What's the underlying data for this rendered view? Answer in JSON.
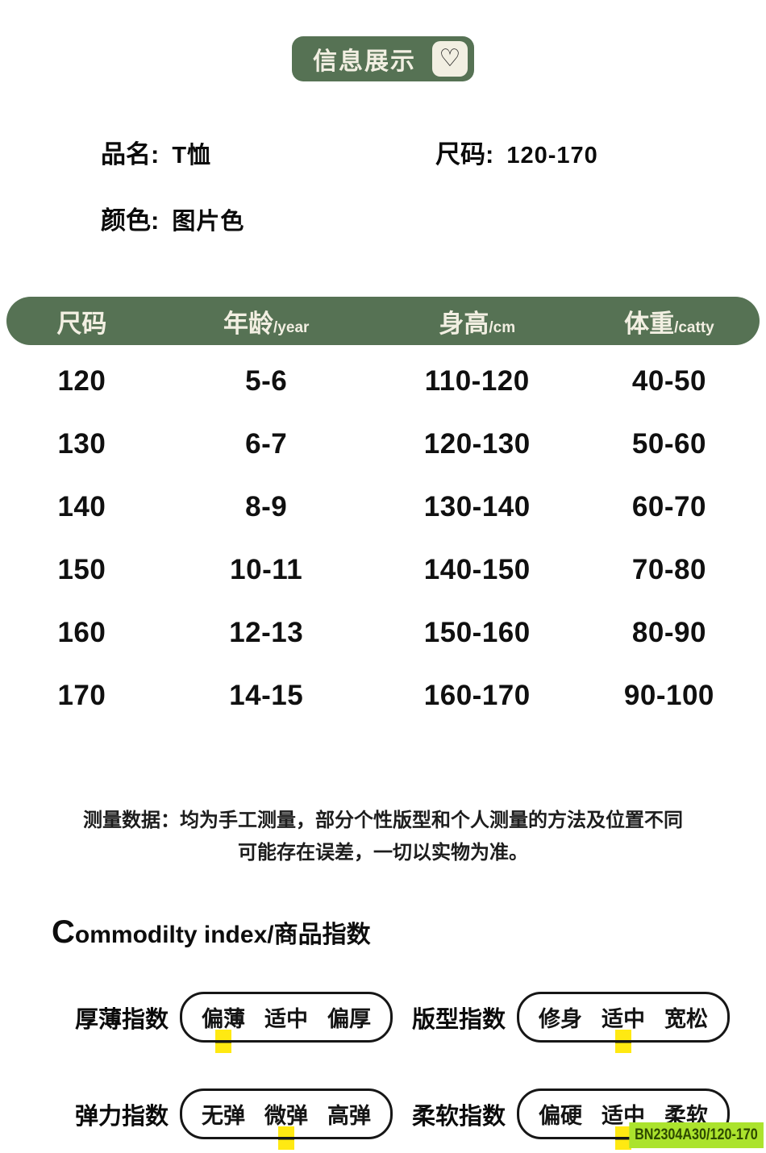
{
  "colors": {
    "green": "#567254",
    "cream": "#f2efe2",
    "yellow": "#ffe912",
    "lime": "#abe32d",
    "ink": "#111111"
  },
  "icons": {
    "heart": "♡"
  },
  "header_badge": {
    "label": "信息展示"
  },
  "product": {
    "name_label": "品名:",
    "name_value": "T恤",
    "size_label": "尺码:",
    "size_value": "120-170",
    "color_label": "颜色:",
    "color_value": "图片色"
  },
  "size_table": {
    "columns": [
      {
        "label": "尺码",
        "unit": ""
      },
      {
        "label": "年龄",
        "unit": "/year"
      },
      {
        "label": "身高",
        "unit": "/cm"
      },
      {
        "label": "体重",
        "unit": "/catty"
      }
    ],
    "rows": [
      [
        "120",
        "5-6",
        "110-120",
        "40-50"
      ],
      [
        "130",
        "6-7",
        "120-130",
        "50-60"
      ],
      [
        "140",
        "8-9",
        "130-140",
        "60-70"
      ],
      [
        "150",
        "10-11",
        "140-150",
        "70-80"
      ],
      [
        "160",
        "12-13",
        "150-160",
        "80-90"
      ],
      [
        "170",
        "14-15",
        "160-170",
        "90-100"
      ]
    ]
  },
  "note": {
    "line1": "测量数据：均为手工测量，部分个性版型和个人测量的方法及位置不同",
    "line2": "可能存在误差，一切以实物为准。"
  },
  "index_section": {
    "title_en": "Commodilty index",
    "title_cn": "/商品指数",
    "items": [
      {
        "label": "厚薄指数",
        "options": [
          "偏薄",
          "适中",
          "偏厚"
        ],
        "selected": 0
      },
      {
        "label": "版型指数",
        "options": [
          "修身",
          "适中",
          "宽松"
        ],
        "selected": 1
      },
      {
        "label": "弹力指数",
        "options": [
          "无弹",
          "微弹",
          "高弹"
        ],
        "selected": 1
      },
      {
        "label": "柔软指数",
        "options": [
          "偏硬",
          "适中",
          "柔软"
        ],
        "selected": 1
      }
    ]
  },
  "sku_badge": "BN2304A30/120-170"
}
